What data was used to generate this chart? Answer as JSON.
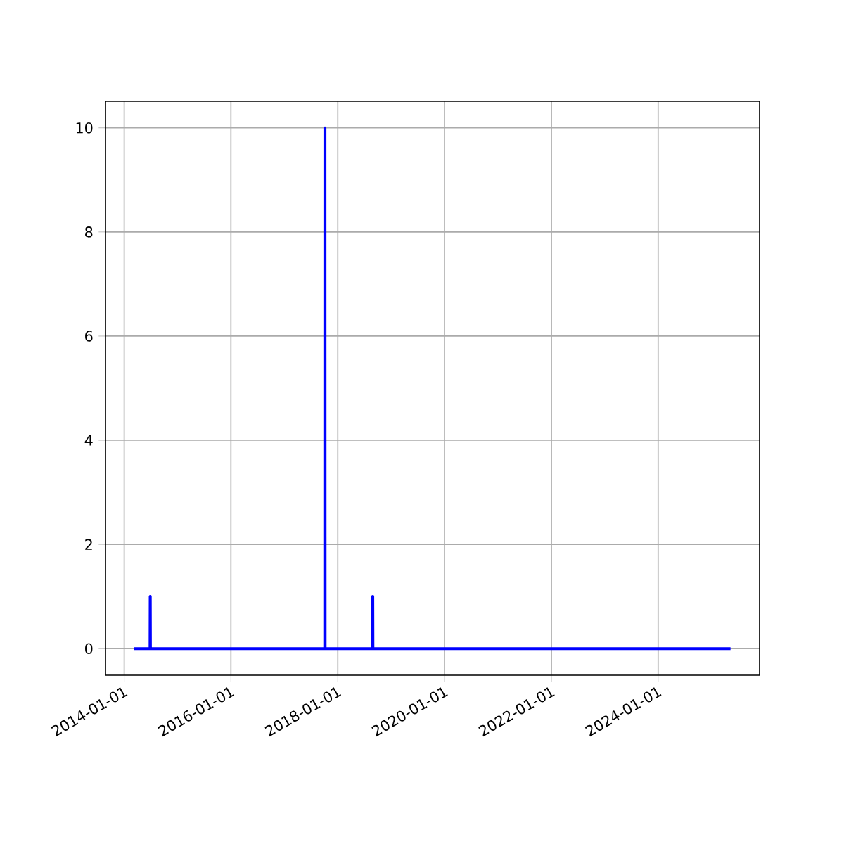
{
  "chart_data": {
    "type": "line",
    "x": [
      "2014-03-11",
      "2014-06-27",
      "2014-06-28",
      "2014-06-29",
      "2017-10-04",
      "2017-10-05",
      "2017-10-06",
      "2018-08-27",
      "2018-08-28",
      "2018-08-29",
      "2025-05-10"
    ],
    "series": [
      {
        "color": "#0000ff",
        "values": [
          0,
          0,
          1,
          0,
          0,
          10,
          0,
          0,
          1,
          0,
          0
        ]
      }
    ],
    "xlim": [
      "2013-08-26",
      "2025-11-25"
    ],
    "xticks": [
      "2014-01-01",
      "2016-01-01",
      "2018-01-01",
      "2020-01-01",
      "2022-01-01",
      "2024-01-01"
    ],
    "ylim": [
      -0.51,
      10.51
    ],
    "yticks": [
      0,
      2,
      4,
      6,
      8,
      10
    ],
    "grid": true,
    "marker": "none",
    "line_style": "solid"
  }
}
